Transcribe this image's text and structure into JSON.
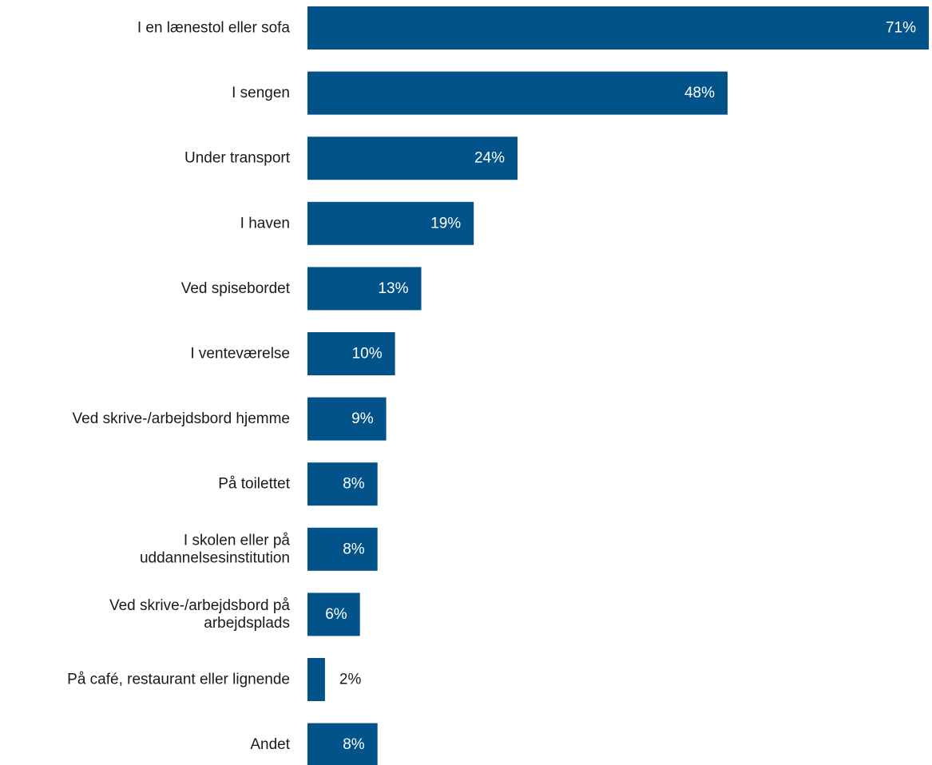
{
  "chart_data": {
    "type": "bar",
    "orientation": "horizontal",
    "categories": [
      [
        "I en lænestol eller sofa"
      ],
      [
        "I sengen"
      ],
      [
        "Under transport"
      ],
      [
        "I haven"
      ],
      [
        "Ved spisebordet"
      ],
      [
        "I venteværelse"
      ],
      [
        "Ved skrive-/arbejdsbord hjemme"
      ],
      [
        "På toilettet"
      ],
      [
        "I skolen eller på",
        "uddannelsesinstitution"
      ],
      [
        "Ved skrive-/arbejdsbord på",
        "arbejdsplads"
      ],
      [
        "På café, restaurant eller lignende"
      ],
      [
        "Andet"
      ]
    ],
    "values": [
      71,
      48,
      24,
      19,
      13,
      10,
      9,
      8,
      8,
      6,
      2,
      8
    ],
    "value_labels": [
      "71%",
      "48%",
      "24%",
      "19%",
      "13%",
      "10%",
      "9%",
      "8%",
      "8%",
      "6%",
      "2%",
      "8%"
    ],
    "xlim": [
      0,
      71
    ],
    "grid": false,
    "legend": "none",
    "bar_color": "#02538a",
    "label_inside_color": "#ffffff",
    "label_outside_color": "#1a1a1a"
  }
}
